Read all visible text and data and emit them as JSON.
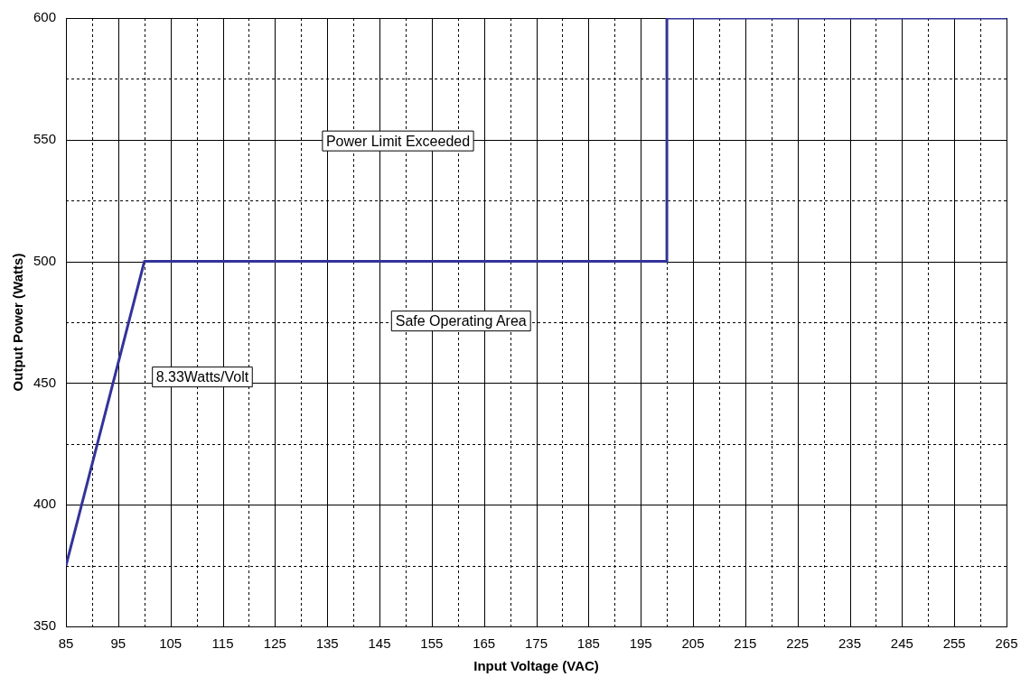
{
  "chart_data": {
    "type": "line",
    "xlabel": "Input Voltage (VAC)",
    "ylabel": "Output Power (Watts)",
    "x": [
      85,
      100,
      200,
      200,
      265
    ],
    "series": [
      {
        "color": "#333399",
        "values": [
          375,
          500,
          500,
          600,
          600
        ]
      }
    ],
    "xlim": [
      85,
      265
    ],
    "xticks": [
      85,
      {
        "value": 90,
        "label": null
      },
      95,
      {
        "value": 100,
        "label": null
      },
      105,
      {
        "value": 110,
        "label": null
      },
      115,
      {
        "value": 120,
        "label": null
      },
      125,
      {
        "value": 130,
        "label": null
      },
      135,
      {
        "value": 140,
        "label": null
      },
      145,
      {
        "value": 150,
        "label": null
      },
      155,
      {
        "value": 160,
        "label": null
      },
      165,
      {
        "value": 170,
        "label": null
      },
      175,
      {
        "value": 180,
        "label": null
      },
      185,
      {
        "value": 190,
        "label": null
      },
      195,
      {
        "value": 200,
        "label": null
      },
      205,
      {
        "value": 210,
        "label": null
      },
      215,
      {
        "value": 220,
        "label": null
      },
      225,
      {
        "value": 230,
        "label": null
      },
      235,
      {
        "value": 240,
        "label": null
      },
      245,
      {
        "value": 250,
        "label": null
      },
      255,
      {
        "value": 260,
        "label": null
      },
      265
    ],
    "ylim": [
      350,
      600
    ],
    "yticks": [
      350,
      {
        "value": 375,
        "label": null
      },
      400,
      {
        "value": 425,
        "label": null
      },
      450,
      {
        "value": 475,
        "label": null
      },
      500,
      {
        "value": 525,
        "label": null
      },
      550,
      {
        "value": 575,
        "label": null
      },
      600
    ],
    "grid": true,
    "legend": false,
    "marker": "none",
    "line_style": "solid",
    "annotations": [
      "Power Limit Exceeded",
      "Safe Operating Area",
      "8.33Watts/Volt"
    ]
  }
}
